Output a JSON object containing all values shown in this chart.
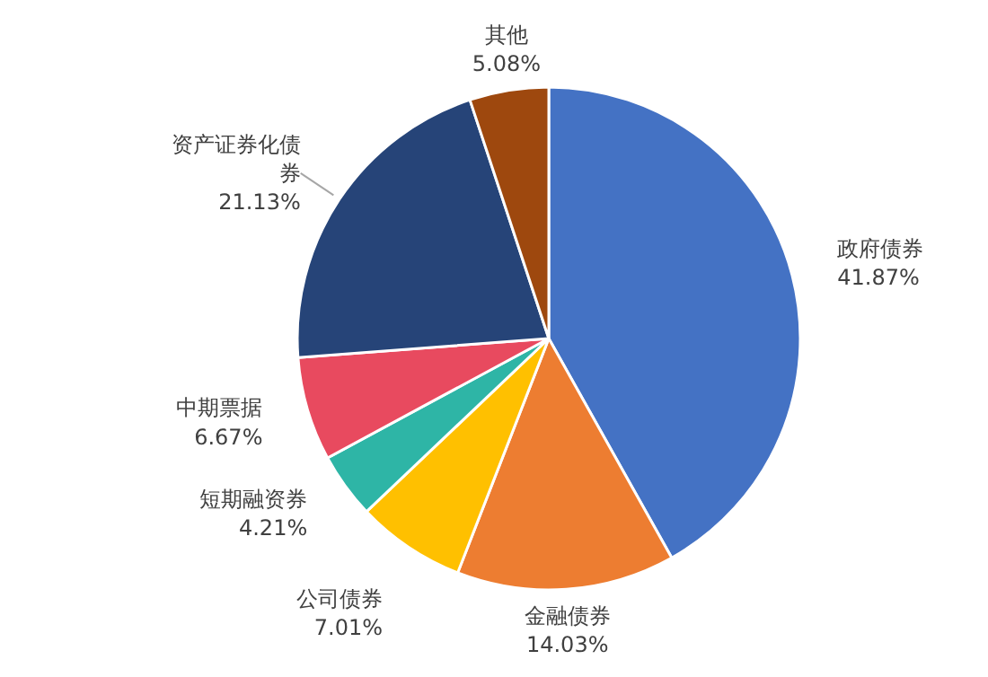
{
  "chart_data": {
    "type": "pie",
    "categories": [
      "政府债券",
      "金融债券",
      "公司债券",
      "短期融资券",
      "中期票据",
      "资产证券化债券",
      "其他"
    ],
    "values": [
      41.87,
      14.03,
      7.01,
      4.21,
      6.67,
      21.13,
      5.08
    ],
    "value_labels": [
      "41.87%",
      "14.03%",
      "7.01%",
      "4.21%",
      "6.67%",
      "21.13%",
      "5.08%"
    ],
    "colors": [
      "#4472c4",
      "#ed7d31",
      "#ffc000",
      "#2eb5a6",
      "#e84a5f",
      "#264478",
      "#9e480e"
    ],
    "legend": false
  }
}
